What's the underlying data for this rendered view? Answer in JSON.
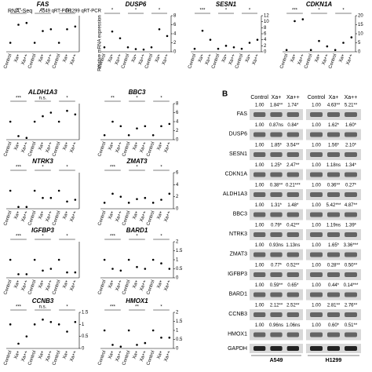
{
  "panelA": {
    "header": {
      "rna_seq": "RNA -Seq",
      "a549": "A549 qRT-PCR",
      "h1299": "H1299 qRT-PCR"
    },
    "ylabel": "Relative mRNA expression",
    "xlabels": [
      "Control",
      "Xa+",
      "Xa++"
    ],
    "plots": [
      {
        "gene": "FAS",
        "color": "#e8282d",
        "ylim": [
          0,
          4
        ],
        "groups": [
          [
            1,
            3,
            3.2
          ],
          [
            1,
            2.3,
            2.5
          ],
          [
            1,
            2.5,
            2.8
          ]
        ],
        "sig": [
          "***",
          "**",
          "*"
        ]
      },
      {
        "gene": "DUSP6",
        "color": "#e8282d",
        "ylim": [
          0,
          8
        ],
        "yticks": [
          0,
          2,
          4,
          6,
          8
        ],
        "groups": [
          [
            1,
            4.5,
            3
          ],
          [
            1,
            0.6,
            0.5
          ],
          [
            1,
            5,
            3.5
          ]
        ],
        "sig": [
          "*",
          "*",
          "*"
        ]
      },
      {
        "gene": "SESN1",
        "color": "#e8282d",
        "ylim": [
          0,
          12
        ],
        "yticks": [
          0,
          2,
          4,
          6,
          8,
          10,
          12
        ],
        "groups": [
          [
            1,
            7,
            4
          ],
          [
            1,
            2,
            1.5
          ],
          [
            1,
            3,
            4
          ]
        ],
        "sig": [
          "***",
          "*",
          "*"
        ]
      },
      {
        "gene": "CDKN1A",
        "color": "#e8282d",
        "ylim": [
          0,
          20
        ],
        "yticks": [
          0,
          5,
          10,
          15,
          20
        ],
        "groups": [
          [
            1,
            17,
            18
          ],
          [
            1,
            6,
            3
          ],
          [
            1,
            5,
            8
          ]
        ],
        "sig": [
          "***",
          "*",
          "*"
        ]
      },
      {
        "gene": "ALDH1A3",
        "color": "#e8282d",
        "ylim": [
          0,
          2
        ],
        "groups": [
          [
            1,
            0.2,
            0.1
          ],
          [
            1,
            1.3,
            1.5
          ],
          [
            1,
            1.6,
            1.4
          ]
        ],
        "sig": [
          "***",
          "n.s.",
          "*"
        ]
      },
      {
        "gene": "BBC3",
        "color": "#e8282d",
        "ylim": [
          0,
          8
        ],
        "yticks": [
          0,
          2,
          4,
          6,
          8
        ],
        "groups": [
          [
            1,
            4,
            3
          ],
          [
            1,
            2.5,
            3
          ],
          [
            1,
            3,
            3.5
          ]
        ],
        "sig": [
          "**",
          "*",
          "*"
        ]
      },
      {
        "gene": "NTRK3",
        "color": "#e8282d",
        "ylim": [
          0,
          2
        ],
        "groups": [
          [
            1,
            0.1,
            0.1
          ],
          [
            1,
            0.6,
            0.6
          ],
          [
            1,
            0.4,
            0.5
          ]
        ],
        "sig": [
          "***",
          "*",
          "*"
        ]
      },
      {
        "gene": "ZMAT3",
        "color": "#e8282d",
        "ylim": [
          0,
          6
        ],
        "yticks": [
          0,
          2,
          4,
          6
        ],
        "groups": [
          [
            1,
            2.5,
            2
          ],
          [
            1,
            1.6,
            1.8
          ],
          [
            1,
            1.5,
            2.5
          ]
        ],
        "sig": [
          "***",
          "*",
          "*"
        ]
      },
      {
        "gene": "IGFBP3",
        "color": "#e8282d",
        "ylim": [
          0,
          2
        ],
        "groups": [
          [
            1,
            0.2,
            0.2
          ],
          [
            1,
            0.4,
            0.5
          ],
          [
            1,
            0.3,
            0.3
          ]
        ],
        "sig": [
          "***",
          "*",
          "*"
        ]
      },
      {
        "gene": "BARD1",
        "color": "#e8282d",
        "ylim": [
          0,
          2
        ],
        "yticks": [
          0,
          0.5,
          1,
          1.5,
          2
        ],
        "groups": [
          [
            1,
            0.5,
            0.4
          ],
          [
            1,
            0.6,
            0.5
          ],
          [
            1,
            0.8,
            0.5
          ]
        ],
        "sig": [
          "***",
          "*",
          "*"
        ]
      },
      {
        "gene": "CCNB3",
        "color": "#000000",
        "ylim": [
          0,
          1.5
        ],
        "yticks": [
          0,
          0.5,
          1,
          1.5
        ],
        "groups": [
          [
            1,
            0.2,
            0.5
          ],
          [
            1,
            1.2,
            1.1
          ],
          [
            1,
            0.7,
            1.1
          ]
        ],
        "sig": [
          "***",
          "n.s.",
          "*"
        ]
      },
      {
        "gene": "HMOX1",
        "color": "#e8282d",
        "ylim": [
          0,
          2
        ],
        "yticks": [
          0,
          0.5,
          1,
          1.5,
          2
        ],
        "groups": [
          [
            1,
            0.2,
            0.1
          ],
          [
            1,
            0.2,
            0.3
          ],
          [
            1,
            0.6,
            0.6
          ]
        ],
        "sig": [
          "***",
          "**",
          "*"
        ]
      }
    ]
  },
  "panelB": {
    "label": "B",
    "columns": [
      "Control",
      "Xa+",
      "Xa++"
    ],
    "loading": "GAPDH",
    "cells": [
      "A549",
      "H1299"
    ],
    "rows": [
      {
        "gene": "FAS",
        "color": "#e8282d",
        "a549": [
          "1.00",
          "1.84**",
          "1.74*"
        ],
        "h1299": [
          "1.00",
          "4.63**",
          "5.21**"
        ]
      },
      {
        "gene": "DUSP6",
        "color": "#000000",
        "a549": [
          "1.00",
          "0.87ns",
          "0.84*"
        ],
        "h1299": [
          "1.00",
          "1.62*",
          "1.60*"
        ]
      },
      {
        "gene": "SESN1",
        "color": "#e8282d",
        "a549": [
          "1.00",
          "1.85*",
          "3.54**"
        ],
        "h1299": [
          "1.00",
          "1.56*",
          "2.10*"
        ]
      },
      {
        "gene": "CDKN1A",
        "color": "#e8282d",
        "a549": [
          "1.00",
          "1.25*",
          "2.47**"
        ],
        "h1299": [
          "1.00",
          "1.18ns",
          "1.34*"
        ]
      },
      {
        "gene": "ALDH1A3",
        "color": "#000000",
        "a549": [
          "1.00",
          "0.38**",
          "0.21***"
        ],
        "h1299": [
          "1.00",
          "0.36**",
          "0.27*"
        ]
      },
      {
        "gene": "BBC3",
        "color": "#e8282d",
        "a549": [
          "1.00",
          "1.31*",
          "1.48*"
        ],
        "h1299": [
          "1.00",
          "5.42***",
          "4.87**"
        ]
      },
      {
        "gene": "NTRK3",
        "color": "#e8282d",
        "a549": [
          "1.00",
          "0.79*",
          "0.42**"
        ],
        "h1299": [
          "1.00",
          "1.19ns",
          "1.39*"
        ]
      },
      {
        "gene": "ZMAT3",
        "color": "#000000",
        "a549": [
          "1.00",
          "0.93ns",
          "1.13ns"
        ],
        "h1299": [
          "1.00",
          "1.65*",
          "3.36***"
        ]
      },
      {
        "gene": "IGFBP3",
        "color": "#e8282d",
        "a549": [
          "1.00",
          "0.77*",
          "0.52**"
        ],
        "h1299": [
          "1.00",
          "0.28**",
          "0.50**"
        ]
      },
      {
        "gene": "BARD1",
        "color": "#e8282d",
        "a549": [
          "1.00",
          "0.59**",
          "0.65*"
        ],
        "h1299": [
          "1.00",
          "0.44*",
          "0.14***"
        ]
      },
      {
        "gene": "CCNB3",
        "color": "#000000",
        "a549": [
          "1.00",
          "2.12**",
          "2.52**"
        ],
        "h1299": [
          "1.00",
          "2.81**",
          "2.76**"
        ]
      },
      {
        "gene": "HMOX1",
        "color": "#e8282d",
        "a549": [
          "1.00",
          "0.96ns",
          "1.06ns"
        ],
        "h1299": [
          "1.00",
          "0.60*",
          "0.51**"
        ]
      }
    ]
  }
}
